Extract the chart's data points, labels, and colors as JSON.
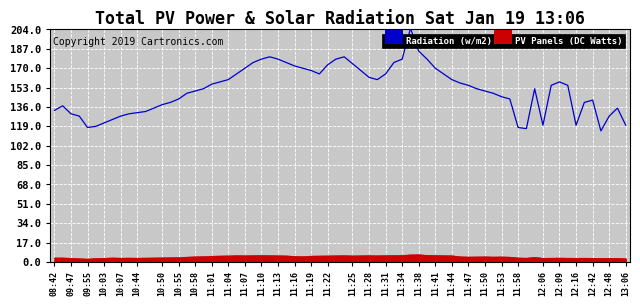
{
  "title": "Total PV Power & Solar Radiation Sat Jan 19 13:06",
  "copyright": "Copyright 2019 Cartronics.com",
  "legend_radiation_label": "Radiation (w/m2)",
  "legend_pv_label": "PV Panels (DC Watts)",
  "legend_radiation_bg": "#0000cc",
  "legend_pv_bg": "#cc0000",
  "radiation_color": "#0000cc",
  "pv_color": "#cc0000",
  "background_color": "#ffffff",
  "plot_bg_color": "#c8c8c8",
  "grid_color": "#ffffff",
  "title_fontsize": 12,
  "copyright_fontsize": 7,
  "ylim": [
    0.0,
    204.0
  ],
  "yticks": [
    0.0,
    17.0,
    34.0,
    51.0,
    68.0,
    85.0,
    102.0,
    119.0,
    136.0,
    153.0,
    170.0,
    187.0,
    204.0
  ],
  "x_labels": [
    "08:42",
    "09:47",
    "09:55",
    "10:03",
    "10:07",
    "10:44",
    "10:50",
    "10:55",
    "10:58",
    "11:01",
    "11:04",
    "11:07",
    "11:10",
    "11:13",
    "11:16",
    "11:19",
    "11:22",
    "11:25",
    "11:28",
    "11:31",
    "11:34",
    "11:38",
    "11:41",
    "11:44",
    "11:47",
    "11:50",
    "11:53",
    "11:58",
    "12:06",
    "12:09",
    "12:16",
    "12:42",
    "12:48",
    "13:06"
  ],
  "radiation_values": [
    133,
    137,
    130,
    128,
    118,
    119,
    122,
    125,
    128,
    130,
    131,
    132,
    135,
    138,
    140,
    143,
    148,
    150,
    152,
    156,
    158,
    160,
    165,
    170,
    175,
    178,
    180,
    178,
    175,
    172,
    170,
    168,
    165,
    173,
    178,
    180,
    174,
    168,
    162,
    160,
    165,
    175,
    178,
    205,
    185,
    178,
    170,
    165,
    160,
    157,
    155,
    152,
    150,
    148,
    145,
    143,
    118,
    117,
    152,
    120,
    155,
    158,
    155,
    120,
    140,
    142,
    115,
    128,
    135,
    120
  ],
  "pv_values": [
    3.5,
    3.5,
    3.2,
    2.8,
    2.5,
    3.0,
    3.2,
    3.5,
    3.3,
    3.4,
    3.3,
    3.4,
    3.5,
    3.6,
    3.7,
    3.8,
    4.2,
    4.5,
    4.6,
    5.0,
    5.2,
    5.3,
    5.5,
    5.4,
    5.5,
    5.6,
    5.5,
    5.4,
    5.3,
    4.8,
    4.6,
    5.1,
    5.2,
    5.3,
    5.4,
    5.5,
    5.3,
    5.4,
    5.5,
    5.4,
    5.5,
    5.6,
    5.7,
    6.2,
    6.3,
    5.8,
    5.6,
    5.5,
    5.4,
    4.5,
    4.3,
    4.4,
    4.5,
    4.3,
    4.4,
    4.2,
    3.5,
    3.3,
    4.0,
    3.2,
    3.3,
    3.4,
    3.3,
    3.2,
    3.3,
    3.2,
    3.1,
    3.2,
    3.1,
    2.8
  ]
}
